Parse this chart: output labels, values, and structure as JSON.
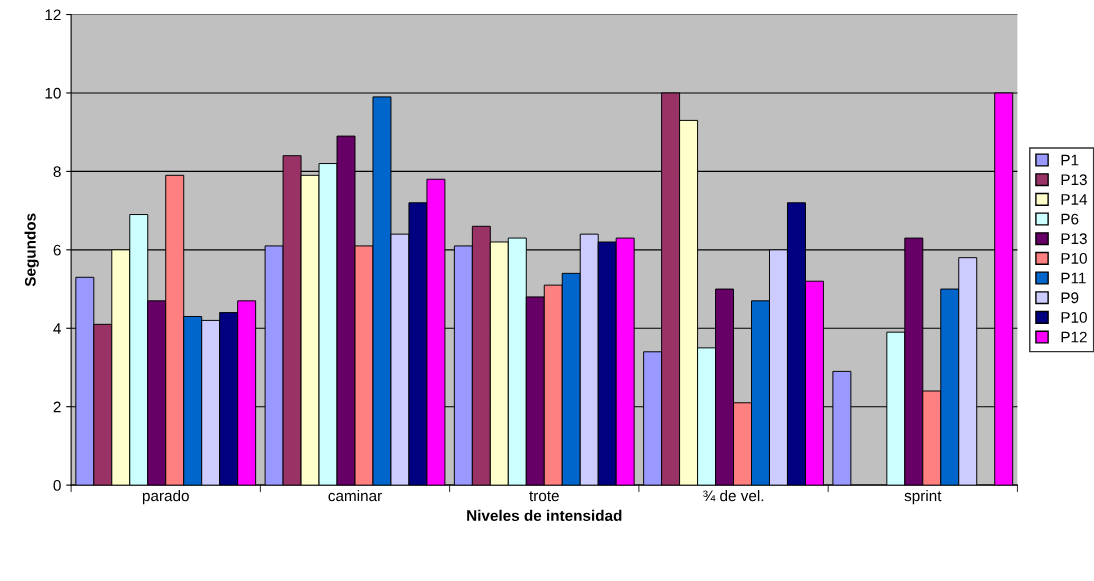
{
  "chart_data": {
    "type": "bar",
    "xlabel": "Niveles de intensidad",
    "ylabel": "Segundos",
    "categories": [
      "parado",
      "caminar",
      "trote",
      "¾ de vel.",
      "sprint"
    ],
    "series": [
      {
        "name": "P1",
        "color": "#9999ff",
        "values": [
          5.3,
          6.1,
          6.1,
          3.4,
          2.9
        ]
      },
      {
        "name": "P13",
        "color": "#993366",
        "values": [
          4.1,
          8.4,
          6.6,
          10.0,
          null
        ]
      },
      {
        "name": "P14",
        "color": "#ffffcc",
        "values": [
          6.0,
          7.9,
          6.2,
          9.3,
          null
        ]
      },
      {
        "name": "P6",
        "color": "#ccffff",
        "values": [
          6.9,
          8.2,
          6.3,
          3.5,
          3.9
        ]
      },
      {
        "name": "P13",
        "color": "#660066",
        "values": [
          4.7,
          8.9,
          4.8,
          5.0,
          6.3
        ]
      },
      {
        "name": "P10",
        "color": "#ff8080",
        "values": [
          7.9,
          6.1,
          5.1,
          2.1,
          2.4
        ]
      },
      {
        "name": "P11",
        "color": "#0066cc",
        "values": [
          4.3,
          9.9,
          5.4,
          4.7,
          5.0
        ]
      },
      {
        "name": "P9",
        "color": "#ccccff",
        "values": [
          4.2,
          6.4,
          6.4,
          6.0,
          5.8
        ]
      },
      {
        "name": "P10",
        "color": "#000080",
        "values": [
          4.4,
          7.2,
          6.2,
          7.2,
          null
        ]
      },
      {
        "name": "P12",
        "color": "#ff00ff",
        "values": [
          4.7,
          7.8,
          6.3,
          5.2,
          10.0
        ]
      }
    ],
    "ylim": [
      0,
      12
    ],
    "yticks": [
      0,
      2,
      4,
      6,
      8,
      10,
      12
    ],
    "grid": "y",
    "legend": "right"
  }
}
